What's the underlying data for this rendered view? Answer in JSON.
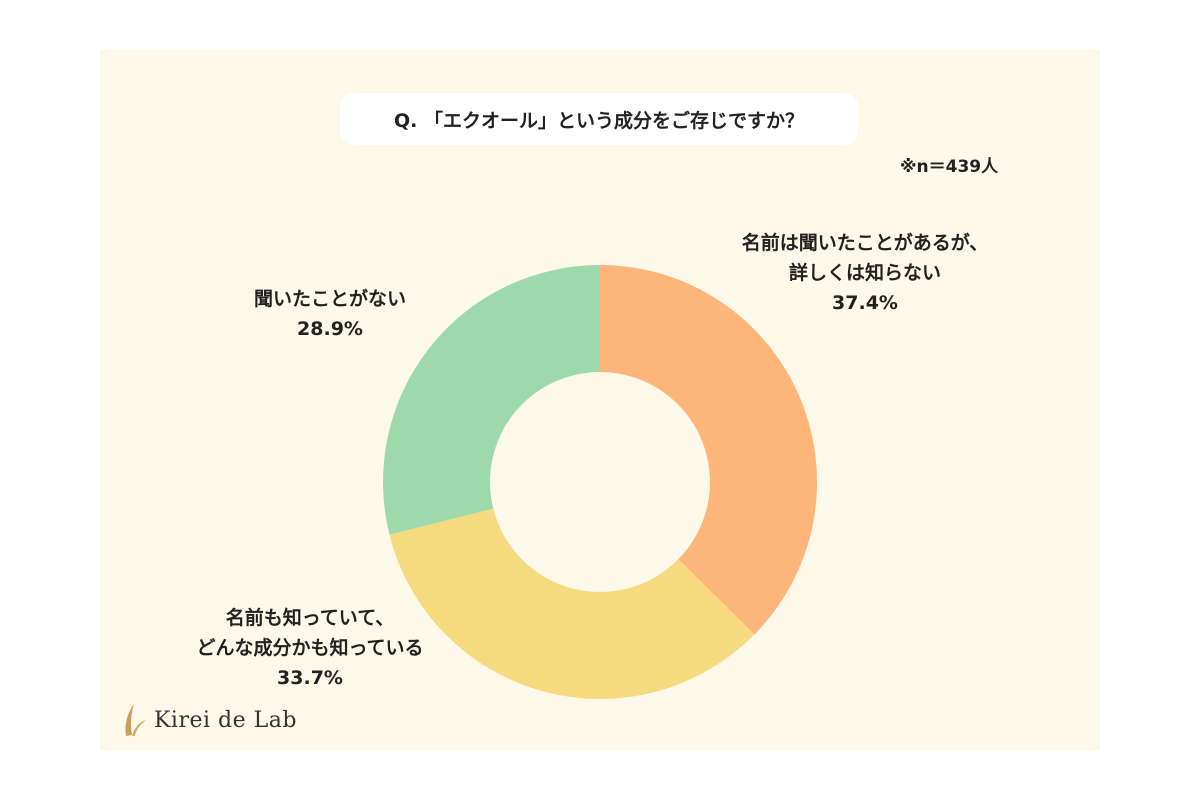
{
  "question": "Q. 「エクオール」という成分をご存じですか？",
  "sample_size": "※n＝439人",
  "brand": {
    "name": "Kirei de Lab",
    "accent": "#c9a15a"
  },
  "labels": {
    "orange": {
      "line1": "名前は聞いたことがあるが、",
      "line2": "詳しくは知らない",
      "pct": "37.4%"
    },
    "yellow": {
      "line1": "名前も知っていて、",
      "line2": "どんな成分かも知っている",
      "pct": "33.7%"
    },
    "green": {
      "line1": "聞いたことがない",
      "pct": "28.9%"
    }
  },
  "chart_data": {
    "type": "pie",
    "variant": "donut",
    "title": "Q. 「エクオール」という成分をご存じですか？",
    "note": "※n＝439人",
    "start": "12 o'clock, clockwise",
    "slices": [
      {
        "label": "名前は聞いたことがあるが、詳しくは知らない",
        "value": 37.4,
        "color": "#fdb57a"
      },
      {
        "label": "名前も知っていて、どんな成分かも知っている",
        "value": 33.7,
        "color": "#f6da7f"
      },
      {
        "label": "聞いたことがない",
        "value": 28.9,
        "color": "#9dd9aa"
      }
    ]
  }
}
